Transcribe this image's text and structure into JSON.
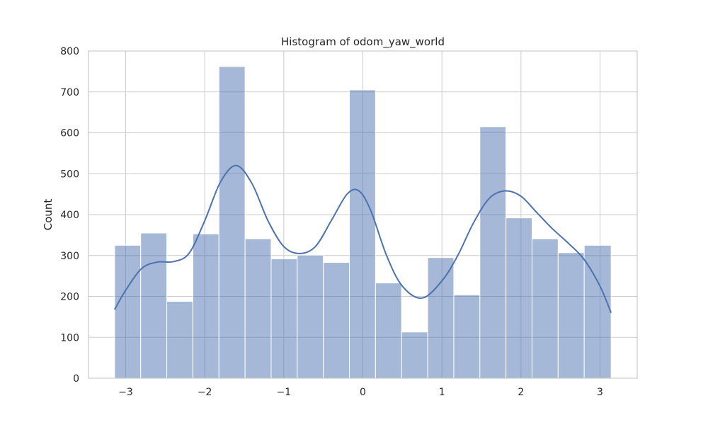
{
  "chart_data": {
    "type": "bar",
    "subtype": "histogram",
    "title": "Histogram of odom_yaw_world",
    "xlabel": "",
    "ylabel": "Count",
    "xlim": [
      -3.47,
      3.47
    ],
    "ylim": [
      0,
      800
    ],
    "xticks": [
      -3,
      -2,
      -1,
      0,
      1,
      2,
      3
    ],
    "xtick_labels": [
      "−3",
      "−2",
      "−1",
      "0",
      "1",
      "2",
      "3"
    ],
    "yticks": [
      0,
      100,
      200,
      300,
      400,
      500,
      600,
      700,
      800
    ],
    "ytick_labels": [
      "0",
      "100",
      "200",
      "300",
      "400",
      "500",
      "600",
      "700",
      "800"
    ],
    "grid": true,
    "colors": {
      "bars": "#4c72b0",
      "kde": "#4c72b0",
      "grid": "#cccccc",
      "text": "#262626"
    },
    "bins": [
      {
        "x0": -3.14,
        "x1": -2.81,
        "count": 325
      },
      {
        "x0": -2.81,
        "x1": -2.48,
        "count": 355
      },
      {
        "x0": -2.48,
        "x1": -2.15,
        "count": 188
      },
      {
        "x0": -2.15,
        "x1": -1.82,
        "count": 353
      },
      {
        "x0": -1.82,
        "x1": -1.49,
        "count": 762
      },
      {
        "x0": -1.49,
        "x1": -1.16,
        "count": 341
      },
      {
        "x0": -1.16,
        "x1": -0.83,
        "count": 292
      },
      {
        "x0": -0.83,
        "x1": -0.5,
        "count": 301
      },
      {
        "x0": -0.5,
        "x1": -0.17,
        "count": 283
      },
      {
        "x0": -0.17,
        "x1": 0.16,
        "count": 705
      },
      {
        "x0": 0.16,
        "x1": 0.49,
        "count": 233
      },
      {
        "x0": 0.49,
        "x1": 0.82,
        "count": 113
      },
      {
        "x0": 0.82,
        "x1": 1.15,
        "count": 295
      },
      {
        "x0": 1.15,
        "x1": 1.48,
        "count": 204
      },
      {
        "x0": 1.48,
        "x1": 1.81,
        "count": 615
      },
      {
        "x0": 1.81,
        "x1": 2.14,
        "count": 392
      },
      {
        "x0": 2.14,
        "x1": 2.47,
        "count": 341
      },
      {
        "x0": 2.47,
        "x1": 2.8,
        "count": 307
      },
      {
        "x0": 2.8,
        "x1": 3.14,
        "count": 325
      }
    ],
    "kde": {
      "x": [
        -3.14,
        -3.0,
        -2.8,
        -2.6,
        -2.4,
        -2.2,
        -2.0,
        -1.8,
        -1.6,
        -1.4,
        -1.2,
        -1.0,
        -0.8,
        -0.6,
        -0.4,
        -0.2,
        -0.05,
        0.1,
        0.3,
        0.5,
        0.75,
        1.0,
        1.2,
        1.4,
        1.6,
        1.8,
        2.0,
        2.2,
        2.4,
        2.6,
        2.8,
        3.0,
        3.14
      ],
      "y": [
        168,
        215,
        268,
        284,
        285,
        305,
        385,
        480,
        520,
        475,
        385,
        322,
        305,
        322,
        385,
        450,
        458,
        410,
        300,
        225,
        196,
        238,
        300,
        380,
        440,
        458,
        445,
        405,
        365,
        330,
        290,
        225,
        160
      ]
    }
  }
}
